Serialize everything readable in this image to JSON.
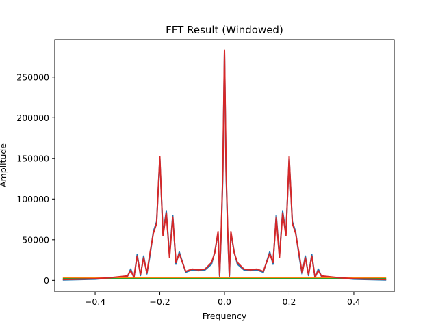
{
  "chart_data": {
    "type": "line",
    "title": "FFT Result (Windowed)",
    "xlabel": "Frequency",
    "ylabel": "Amplitude",
    "xlim": [
      -0.525,
      0.525
    ],
    "ylim": [
      -14000,
      296000
    ],
    "grid": false,
    "x_ticks": [
      -0.4,
      -0.2,
      0.0,
      0.2,
      0.4
    ],
    "x_tick_labels": [
      "−0.4",
      "−0.2",
      "0.0",
      "0.2",
      "0.4"
    ],
    "y_ticks": [
      0,
      50000,
      100000,
      150000,
      200000,
      250000
    ],
    "y_tick_labels": [
      "0",
      "50000",
      "100000",
      "150000",
      "200000",
      "250000"
    ],
    "colors": [
      "#1f77b4",
      "#ff7f0e",
      "#2ca02c",
      "#d62728"
    ],
    "series": [
      {
        "color": "#1f77b4",
        "x": [
          -0.5,
          -0.4,
          -0.35,
          -0.3,
          -0.29,
          -0.28,
          -0.27,
          -0.26,
          -0.25,
          -0.24,
          -0.23,
          -0.22,
          -0.21,
          -0.2,
          -0.19,
          -0.18,
          -0.17,
          -0.16,
          -0.15,
          -0.14,
          -0.12,
          -0.1,
          -0.08,
          -0.06,
          -0.04,
          -0.03,
          -0.02,
          -0.015,
          -0.01,
          -0.005,
          0.0,
          0.005,
          0.01,
          0.015,
          0.02,
          0.03,
          0.04,
          0.06,
          0.08,
          0.1,
          0.12,
          0.14,
          0.15,
          0.16,
          0.17,
          0.18,
          0.19,
          0.2,
          0.21,
          0.22,
          0.23,
          0.24,
          0.25,
          0.26,
          0.27,
          0.28,
          0.29,
          0.3,
          0.35,
          0.4,
          0.5
        ],
        "y": [
          500,
          1500,
          3000,
          5000,
          14000,
          3000,
          32000,
          6000,
          30000,
          8000,
          32000,
          60000,
          72000,
          150000,
          58000,
          85000,
          30000,
          80000,
          20000,
          35000,
          10000,
          13000,
          12000,
          13000,
          20000,
          35000,
          58000,
          5000,
          60000,
          130000,
          280000,
          130000,
          60000,
          5000,
          58000,
          35000,
          20000,
          13000,
          12000,
          13000,
          10000,
          35000,
          20000,
          80000,
          30000,
          85000,
          58000,
          150000,
          72000,
          60000,
          32000,
          8000,
          30000,
          6000,
          32000,
          3000,
          14000,
          5000,
          3000,
          1500,
          500
        ]
      },
      {
        "color": "#ff7f0e",
        "x": [
          -0.5,
          0.5
        ],
        "y": [
          3500,
          3500
        ]
      },
      {
        "color": "#2ca02c",
        "x": [
          -0.5,
          0.5
        ],
        "y": [
          2000,
          2000
        ]
      },
      {
        "color": "#d62728",
        "x": [
          -0.5,
          -0.4,
          -0.35,
          -0.3,
          -0.29,
          -0.28,
          -0.27,
          -0.26,
          -0.25,
          -0.24,
          -0.23,
          -0.22,
          -0.21,
          -0.2,
          -0.19,
          -0.18,
          -0.17,
          -0.16,
          -0.15,
          -0.14,
          -0.12,
          -0.1,
          -0.08,
          -0.06,
          -0.04,
          -0.03,
          -0.02,
          -0.015,
          -0.01,
          -0.005,
          0.0,
          0.005,
          0.01,
          0.015,
          0.02,
          0.03,
          0.04,
          0.06,
          0.08,
          0.1,
          0.12,
          0.14,
          0.15,
          0.16,
          0.17,
          0.18,
          0.19,
          0.2,
          0.21,
          0.22,
          0.23,
          0.24,
          0.25,
          0.26,
          0.27,
          0.28,
          0.29,
          0.3,
          0.35,
          0.4,
          0.5
        ],
        "y": [
          1000,
          2000,
          3500,
          5500,
          12000,
          4000,
          30000,
          7000,
          28000,
          9000,
          35000,
          58000,
          70000,
          152000,
          55000,
          83000,
          28000,
          78000,
          22000,
          33000,
          11000,
          14000,
          13000,
          14000,
          22000,
          34000,
          60000,
          6000,
          62000,
          135000,
          283000,
          135000,
          62000,
          6000,
          60000,
          34000,
          22000,
          14000,
          13000,
          14000,
          11000,
          33000,
          22000,
          78000,
          28000,
          83000,
          55000,
          152000,
          70000,
          58000,
          35000,
          9000,
          28000,
          7000,
          30000,
          4000,
          12000,
          5500,
          3500,
          2000,
          1000
        ]
      }
    ]
  }
}
